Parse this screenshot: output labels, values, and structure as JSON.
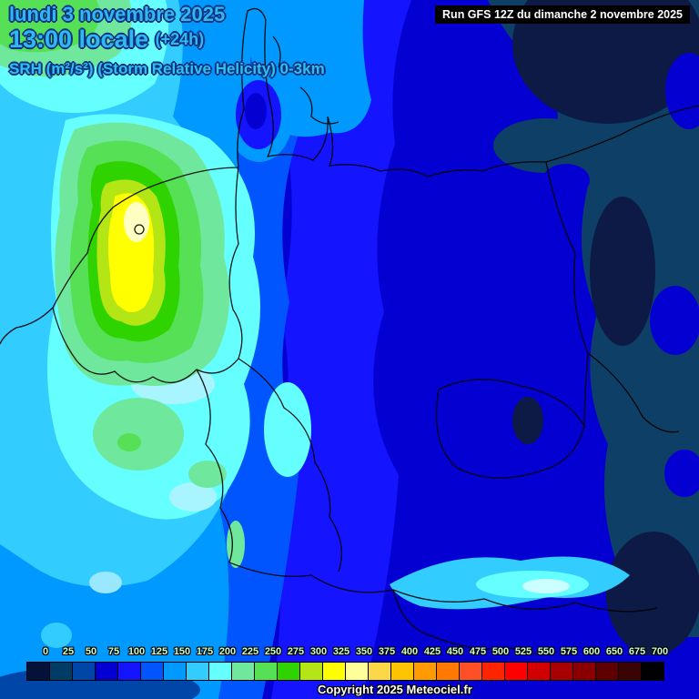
{
  "header": {
    "date_line": "lundi 3 novembre 2025",
    "time_line": "13:00 locale",
    "time_offset": "(+24h)",
    "parameter_line": "SRH (m²/s²) (Storm Relative Helicity) 0-3km",
    "run_label": "Run GFS 12Z du dimanche 2 novembre 2025"
  },
  "footer": {
    "copyright": "Copyright 2025 Meteociel.fr"
  },
  "colorbar": {
    "unit": "m²/s²",
    "labels": [
      "0",
      "25",
      "50",
      "75",
      "100",
      "125",
      "150",
      "175",
      "200",
      "225",
      "250",
      "275",
      "300",
      "325",
      "350",
      "375",
      "400",
      "425",
      "450",
      "475",
      "500",
      "525",
      "550",
      "575",
      "600",
      "650",
      "675",
      "700"
    ],
    "colors": [
      "#04123a",
      "#003c66",
      "#0046a8",
      "#0500d2",
      "#1414ff",
      "#0055ff",
      "#0099ff",
      "#33ccff",
      "#66ffff",
      "#6fe89d",
      "#55e055",
      "#2ed300",
      "#b4e514",
      "#ffff00",
      "#ffff99",
      "#fcd848",
      "#ffc400",
      "#ff9a00",
      "#ff7800",
      "#ff4f26",
      "#ff2400",
      "#ff0000",
      "#d10000",
      "#a80000",
      "#8a0000",
      "#5e0000",
      "#3a0404",
      "#000000"
    ]
  },
  "map": {
    "type": "filled-contour forecast map",
    "region": "Western and Central Europe",
    "visible_pattern_high": "yellow maximum (~325-375 m²/s²) over the Netherlands",
    "visible_pattern_low": "dark blue minimum (<50 m²/s²) over eastern Germany and Poland"
  }
}
